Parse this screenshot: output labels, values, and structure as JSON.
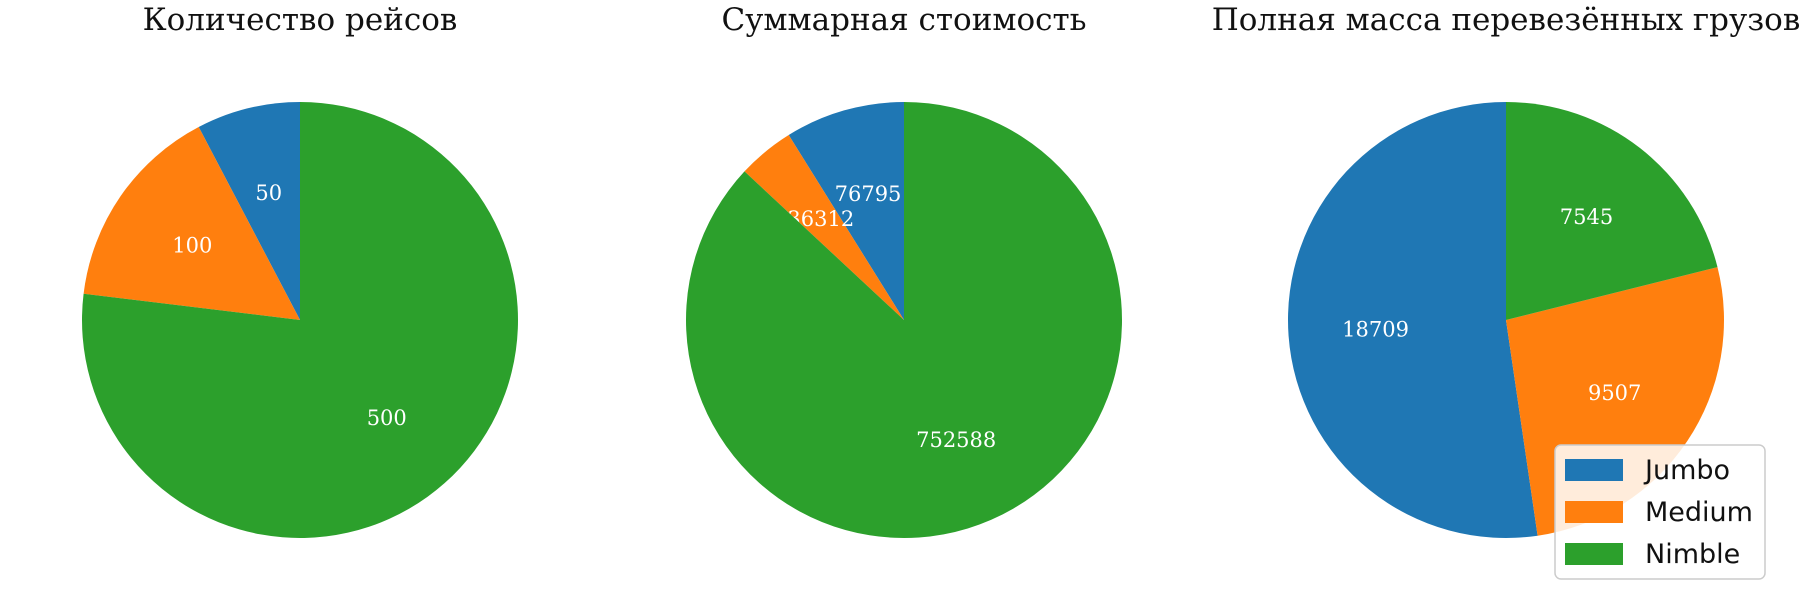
{
  "chart_data": [
    {
      "type": "pie",
      "title": "Количество рейсов",
      "categories": [
        "Jumbo",
        "Medium",
        "Nimble"
      ],
      "values": [
        50,
        100,
        500
      ],
      "value_labels": [
        "50",
        "100",
        "500"
      ],
      "start_angle": 90,
      "direction": "counterclockwise"
    },
    {
      "type": "pie",
      "title": "Суммарная стоимость",
      "categories": [
        "Jumbo",
        "Medium",
        "Nimble"
      ],
      "values": [
        76795,
        36312,
        752588
      ],
      "value_labels": [
        "76795",
        "36312",
        "752588"
      ],
      "start_angle": 90,
      "direction": "counterclockwise"
    },
    {
      "type": "pie",
      "title": "Полная масса перевезённых грузов",
      "categories": [
        "Jumbo",
        "Medium",
        "Nimble"
      ],
      "values": [
        18709,
        9507,
        7545
      ],
      "value_labels": [
        "18709",
        "9507",
        "7545"
      ],
      "start_angle": 90,
      "direction": "counterclockwise"
    }
  ],
  "legend": {
    "placement": "lower-right",
    "entries": [
      {
        "label": "Jumbo",
        "color": "#1f77b4"
      },
      {
        "label": "Medium",
        "color": "#ff7f0e"
      },
      {
        "label": "Nimble",
        "color": "#2ca02c"
      }
    ]
  },
  "colors": {
    "Jumbo": "#1f77b4",
    "Medium": "#ff7f0e",
    "Nimble": "#2ca02c"
  }
}
